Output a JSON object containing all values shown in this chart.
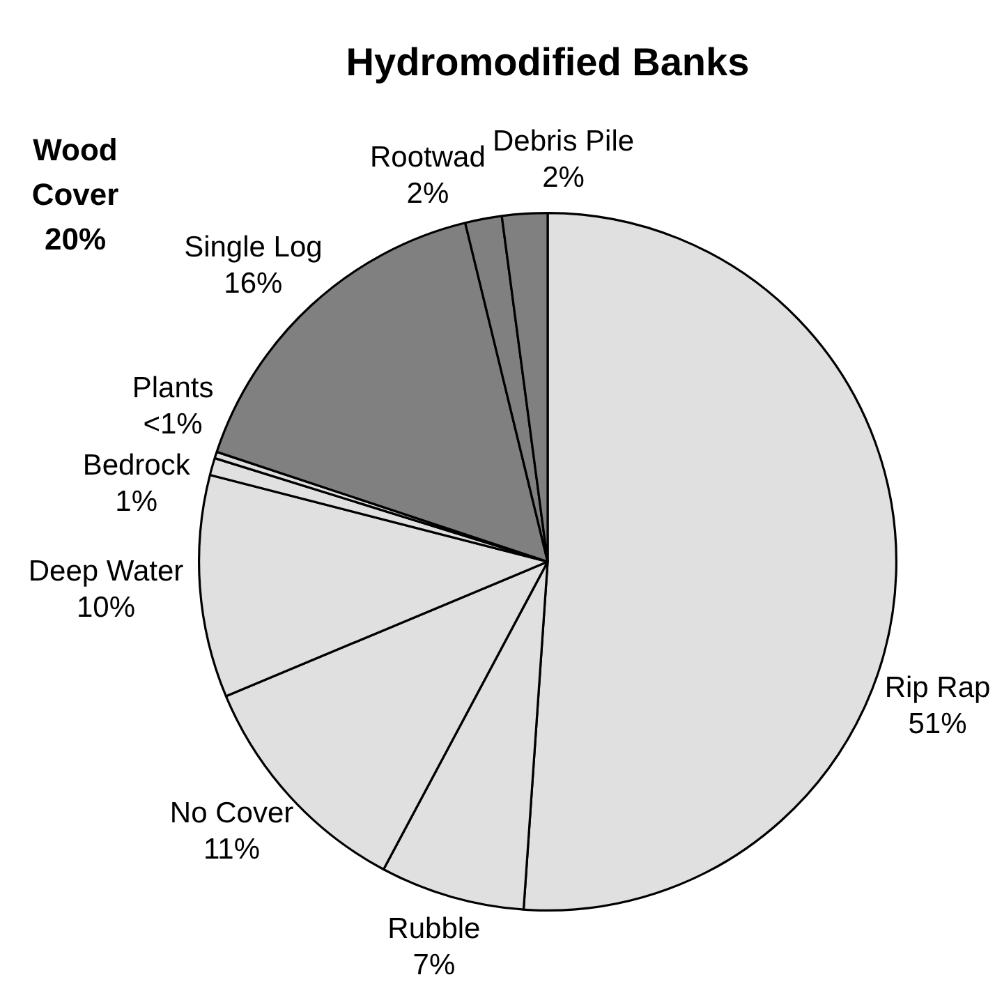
{
  "chart_data": {
    "type": "pie",
    "title": "Hydromodified Banks",
    "categories": [
      "Rip Rap",
      "Rubble",
      "No Cover",
      "Deep Water",
      "Bedrock",
      "Plants",
      "Single Log",
      "Rootwad",
      "Debris Pile"
    ],
    "values": [
      51.1,
      6.7,
      10.9,
      10.3,
      0.8,
      0.3,
      16.1,
      1.7,
      2.1
    ],
    "colors": [
      "#e0e0e0",
      "#e0e0e0",
      "#e0e0e0",
      "#e0e0e0",
      "#e0e0e0",
      "#e0e0e0",
      "#808080",
      "#808080",
      "#808080"
    ],
    "value_labels": [
      "51%",
      "7%",
      "11%",
      "10%",
      "1%",
      "<1%",
      "16%",
      "2%",
      "2%"
    ],
    "annotations": [
      "Wood Cover 20%"
    ]
  }
}
